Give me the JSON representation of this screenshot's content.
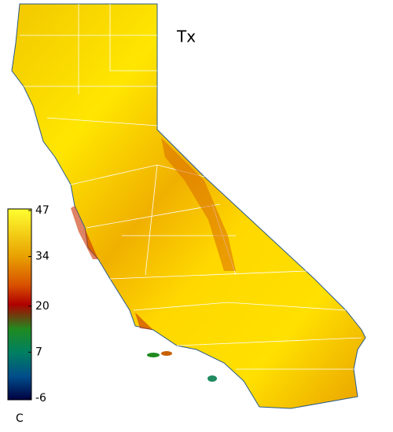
{
  "title": "Tx",
  "colorbar": {
    "lim": [
      -6,
      47
    ],
    "ticks": [
      47,
      34,
      20,
      7,
      -6
    ],
    "unit": "C"
  }
}
